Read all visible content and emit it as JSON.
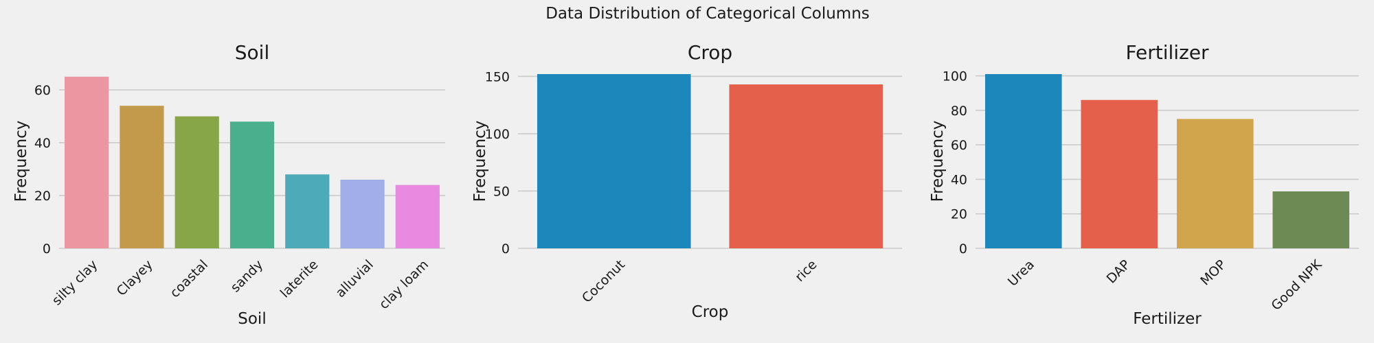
{
  "figure": {
    "title": "Data Distribution of Categorical Columns",
    "background": "#f0f0f0",
    "grid_color": "#cbcbcb"
  },
  "chart_data": [
    {
      "type": "bar",
      "title": "Soil",
      "xlabel": "Soil",
      "ylabel": "Frequency",
      "categories": [
        "silty clay",
        "Clayey",
        "coastal",
        "sandy",
        "laterite",
        "alluvial",
        "clay loam"
      ],
      "values": [
        65,
        54,
        50,
        48,
        28,
        26,
        24
      ],
      "colors": [
        "#ec96a1",
        "#c39a4c",
        "#87a648",
        "#4aaf8d",
        "#4caab9",
        "#a1aeea",
        "#e98ae1"
      ],
      "ylim": [
        0,
        66
      ],
      "yticks": [
        0,
        20,
        40,
        60
      ],
      "grid": true
    },
    {
      "type": "bar",
      "title": "Crop",
      "xlabel": "Crop",
      "ylabel": "Frequency",
      "categories": [
        "Coconut",
        "rice"
      ],
      "values": [
        152,
        143
      ],
      "colors": [
        "#1c87bb",
        "#e5604a"
      ],
      "ylim": [
        0,
        152
      ],
      "yticks": [
        0,
        50,
        100,
        150
      ],
      "grid": true
    },
    {
      "type": "bar",
      "title": "Fertilizer",
      "xlabel": "Fertilizer",
      "ylabel": "Frequency",
      "categories": [
        "Urea",
        "DAP",
        "MOP",
        "Good NPK"
      ],
      "values": [
        101,
        86,
        75,
        33
      ],
      "colors": [
        "#1c87bb",
        "#e5604a",
        "#d1a54c",
        "#6d8a54"
      ],
      "ylim": [
        0,
        101
      ],
      "yticks": [
        0,
        20,
        40,
        60,
        80,
        100
      ],
      "grid": true
    }
  ]
}
